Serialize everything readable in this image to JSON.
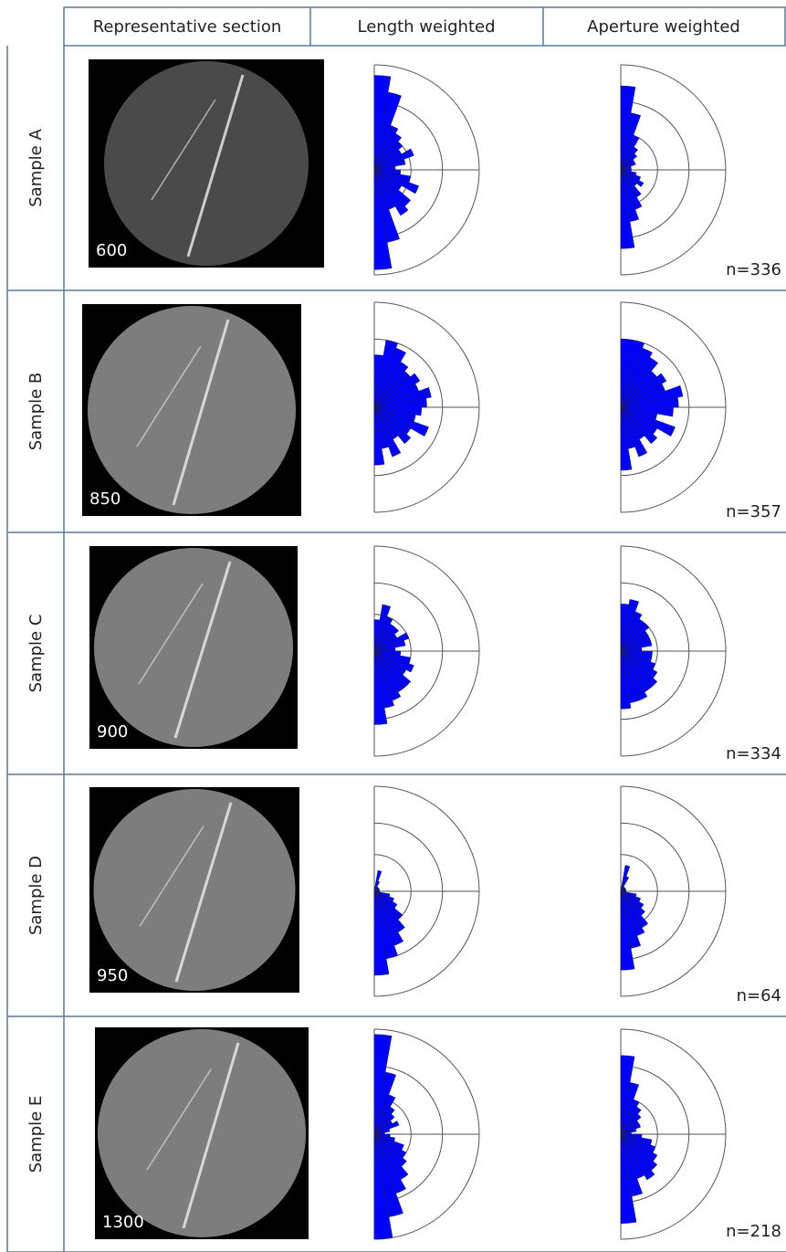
{
  "header": {
    "columns": [
      "Representative section",
      "Length weighted",
      "Aperture weighted"
    ]
  },
  "rose_rings": [
    0.35,
    0.65,
    1
  ],
  "rows": [
    {
      "sample": "Sample A",
      "depth": "600",
      "n": "n=336",
      "length_weighted": [
        0.9,
        0.75,
        0.45,
        0.4,
        0.35,
        0.3,
        0.4,
        0.3,
        0.2,
        0.25,
        0.35,
        0.45,
        0.3,
        0.45,
        0.5,
        0.4,
        0.7,
        0.95
      ],
      "aperture_weighted": [
        0.8,
        0.55,
        0.35,
        0.25,
        0.2,
        0.15,
        0.15,
        0.1,
        0.1,
        0.1,
        0.15,
        0.2,
        0.25,
        0.2,
        0.3,
        0.4,
        0.5,
        0.75
      ]
    },
    {
      "sample": "Sample B",
      "depth": "850",
      "n": "n=357",
      "length_weighted": [
        0.5,
        0.65,
        0.6,
        0.5,
        0.45,
        0.5,
        0.45,
        0.55,
        0.5,
        0.45,
        0.4,
        0.55,
        0.4,
        0.45,
        0.35,
        0.5,
        0.4,
        0.55
      ],
      "aperture_weighted": [
        0.65,
        0.65,
        0.6,
        0.55,
        0.45,
        0.5,
        0.45,
        0.6,
        0.55,
        0.5,
        0.35,
        0.55,
        0.4,
        0.45,
        0.35,
        0.5,
        0.4,
        0.6
      ]
    },
    {
      "sample": "Sample C",
      "depth": "900",
      "n": "n=334",
      "length_weighted": [
        0.3,
        0.45,
        0.35,
        0.3,
        0.3,
        0.25,
        0.35,
        0.3,
        0.2,
        0.25,
        0.35,
        0.4,
        0.35,
        0.45,
        0.45,
        0.5,
        0.55,
        0.7
      ],
      "aperture_weighted": [
        0.45,
        0.5,
        0.4,
        0.35,
        0.35,
        0.3,
        0.3,
        0.3,
        0.2,
        0.3,
        0.3,
        0.35,
        0.4,
        0.45,
        0.45,
        0.5,
        0.5,
        0.55
      ]
    },
    {
      "sample": "Sample D",
      "depth": "950",
      "n": "n=64",
      "length_weighted": [
        0,
        0.2,
        0.1,
        0.05,
        0.05,
        0.05,
        0.05,
        0.05,
        0.05,
        0.05,
        0.15,
        0.2,
        0.25,
        0.35,
        0.45,
        0.55,
        0.65,
        0.8
      ],
      "aperture_weighted": [
        0,
        0.25,
        0.15,
        0.05,
        0.05,
        0.05,
        0.05,
        0.05,
        0.05,
        0.05,
        0.15,
        0.2,
        0.25,
        0.3,
        0.4,
        0.45,
        0.55,
        0.75
      ]
    },
    {
      "sample": "Sample E",
      "depth": "1300",
      "n": "n=218",
      "length_weighted": [
        0.95,
        0.6,
        0.4,
        0.3,
        0.25,
        0.2,
        0.25,
        0.15,
        0.1,
        0.15,
        0.2,
        0.3,
        0.35,
        0.4,
        0.5,
        0.6,
        0.8,
        1.0
      ],
      "aperture_weighted": [
        0.75,
        0.5,
        0.35,
        0.3,
        0.25,
        0.2,
        0.2,
        0.15,
        0.1,
        0.2,
        0.3,
        0.35,
        0.4,
        0.45,
        0.5,
        0.45,
        0.6,
        0.85
      ]
    }
  ]
}
